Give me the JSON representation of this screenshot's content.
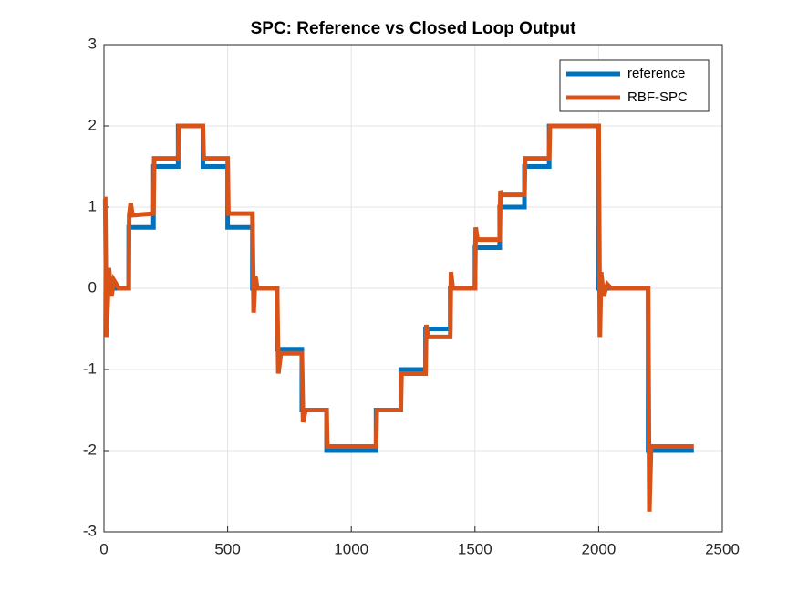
{
  "chart_data": {
    "type": "line",
    "title": "SPC: Reference vs Closed Loop Output",
    "xlim": [
      0,
      2500
    ],
    "xticks": [
      0,
      500,
      1000,
      1500,
      2000,
      2500
    ],
    "ylim": [
      -3,
      3
    ],
    "yticks": [
      -3,
      -2,
      -1,
      0,
      1,
      2,
      3
    ],
    "grid": true,
    "legend_location": "northeast",
    "series": [
      {
        "name": "reference",
        "color": "#0072BD",
        "x": [
          0,
          100,
          100,
          200,
          200,
          300,
          300,
          400,
          400,
          500,
          500,
          600,
          600,
          700,
          700,
          800,
          800,
          900,
          900,
          1100,
          1100,
          1200,
          1200,
          1300,
          1300,
          1400,
          1400,
          1500,
          1500,
          1600,
          1600,
          1700,
          1700,
          1800,
          1800,
          2000,
          2000,
          2200,
          2200,
          2385
        ],
        "values": [
          0,
          0,
          0.75,
          0.75,
          1.5,
          1.5,
          2,
          2,
          1.5,
          1.5,
          0.75,
          0.75,
          0,
          0,
          -0.75,
          -0.75,
          -1.5,
          -1.5,
          -2,
          -2,
          -1.5,
          -1.5,
          -1,
          -1,
          -0.5,
          -0.5,
          0,
          0,
          0.5,
          0.5,
          1,
          1,
          1.5,
          1.5,
          2,
          2,
          0,
          0,
          -2,
          -2
        ]
      },
      {
        "name": "RBF-SPC",
        "color": "#D95319",
        "x": [
          0,
          5,
          10,
          20,
          30,
          40,
          60,
          100,
          102,
          108,
          115,
          200,
          203,
          300,
          303,
          400,
          403,
          500,
          503,
          600,
          605,
          612,
          620,
          700,
          705,
          715,
          800,
          805,
          815,
          900,
          903,
          1100,
          1103,
          1200,
          1203,
          1300,
          1303,
          1310,
          1400,
          1403,
          1410,
          1500,
          1503,
          1510,
          1600,
          1603,
          1610,
          1700,
          1703,
          1800,
          1803,
          2000,
          2005,
          2010,
          2020,
          2035,
          2050,
          2200,
          2205,
          2212,
          2385
        ],
        "values": [
          1.1,
          1.1,
          -0.6,
          0.25,
          -0.1,
          0.1,
          0,
          0,
          0.9,
          1.05,
          0.9,
          0.92,
          1.6,
          1.6,
          2,
          2,
          1.6,
          1.6,
          0.92,
          0.92,
          -0.3,
          0.15,
          0,
          0,
          -1.05,
          -0.8,
          -0.8,
          -1.65,
          -1.5,
          -1.5,
          -1.95,
          -1.95,
          -1.5,
          -1.5,
          -1.05,
          -1.05,
          -0.45,
          -0.6,
          -0.6,
          0.2,
          0,
          0,
          0.75,
          0.6,
          0.6,
          1.2,
          1.15,
          1.15,
          1.6,
          1.6,
          2,
          2,
          -0.6,
          0.2,
          -0.1,
          0.05,
          0,
          0,
          -2.75,
          -1.95,
          -1.95
        ]
      }
    ]
  }
}
